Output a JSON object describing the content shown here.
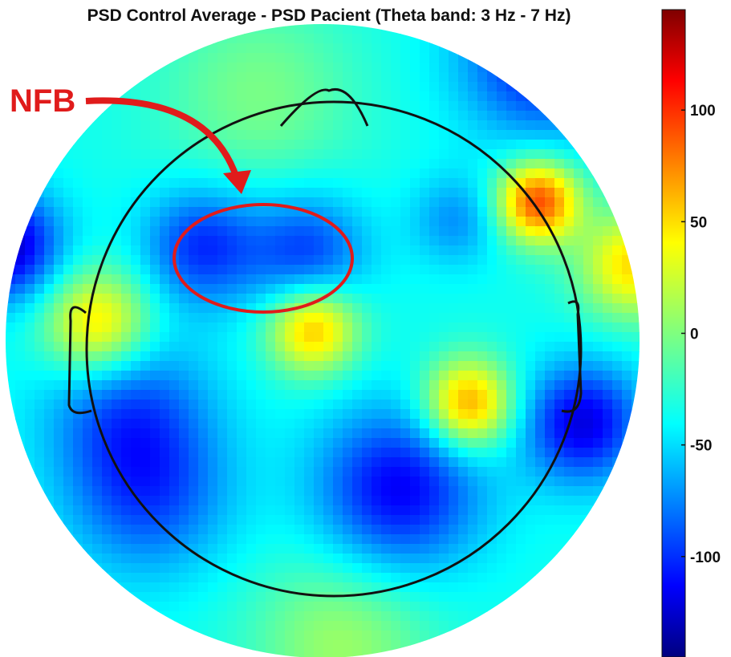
{
  "chart_data": {
    "type": "heatmap",
    "title": "PSD Control Average - PSD Pacient (Theta band: 3 Hz - 7 Hz)",
    "colormap": "jet",
    "color_range": [
      -145,
      145
    ],
    "colorbar": {
      "ticks": [
        100,
        50,
        0,
        -50,
        -100
      ],
      "tick_labels": [
        "100",
        "50",
        "0",
        "-50",
        "-100"
      ]
    },
    "annotation": {
      "text": "NFB",
      "color": "#e01b1b"
    },
    "field": {
      "baseline": -32,
      "sources": [
        {
          "x": 0.68,
          "y": 0.44,
          "value": 120,
          "spread": 0.09
        },
        {
          "x": 0.98,
          "y": 0.24,
          "value": 78,
          "spread": 0.12
        },
        {
          "x": -0.71,
          "y": 0.05,
          "value": 85,
          "spread": 0.12
        },
        {
          "x": -0.03,
          "y": 0.04,
          "value": 90,
          "spread": 0.1
        },
        {
          "x": 0.46,
          "y": -0.2,
          "value": 100,
          "spread": 0.1
        },
        {
          "x": -0.2,
          "y": 0.78,
          "value": 30,
          "spread": 0.22
        },
        {
          "x": -0.38,
          "y": 0.3,
          "value": -65,
          "spread": 0.13
        },
        {
          "x": -0.05,
          "y": 0.28,
          "value": -60,
          "spread": 0.13
        },
        {
          "x": 0.82,
          "y": -0.26,
          "value": -85,
          "spread": 0.13
        },
        {
          "x": 0.24,
          "y": -0.47,
          "value": -80,
          "spread": 0.18
        },
        {
          "x": -0.55,
          "y": -0.48,
          "value": -55,
          "spread": 0.18
        },
        {
          "x": -1.0,
          "y": 0.3,
          "value": -95,
          "spread": 0.12
        },
        {
          "x": 0.7,
          "y": 0.9,
          "value": -75,
          "spread": 0.18
        },
        {
          "x": -0.62,
          "y": -0.2,
          "value": -50,
          "spread": 0.18
        },
        {
          "x": 0.06,
          "y": -0.95,
          "value": 40,
          "spread": 0.2
        },
        {
          "x": 0.42,
          "y": 0.38,
          "value": -35,
          "spread": 0.1
        }
      ]
    }
  }
}
